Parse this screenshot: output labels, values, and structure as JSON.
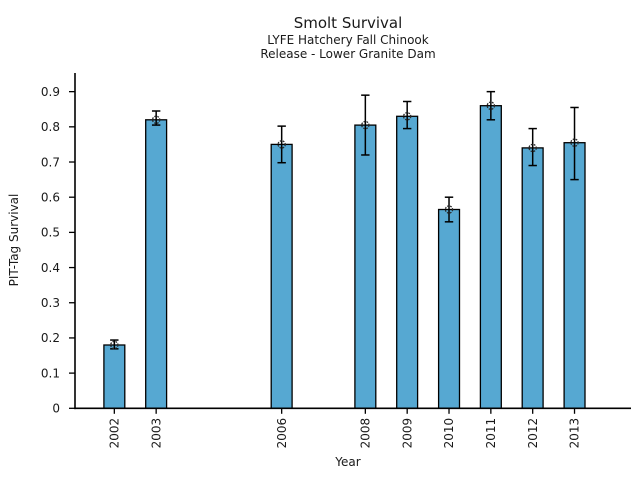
{
  "figure": {
    "background": "#ffffff",
    "text_color": "#1a1a1a"
  },
  "chart_data": {
    "type": "bar",
    "title": "Smolt Survival",
    "subtitle_lines": [
      "LYFE Hatchery Fall Chinook",
      "Release - Lower Granite Dam"
    ],
    "xlabel": "Year",
    "ylabel": "PIT-Tag Survival",
    "categories": [
      "2002",
      "2003",
      "2006",
      "2008",
      "2009",
      "2010",
      "2011",
      "2012",
      "2013"
    ],
    "values": [
      0.18,
      0.82,
      0.75,
      0.805,
      0.83,
      0.565,
      0.86,
      0.74,
      0.755
    ],
    "error_low": [
      0.169,
      0.805,
      0.698,
      0.72,
      0.795,
      0.53,
      0.82,
      0.69,
      0.65
    ],
    "error_high": [
      0.194,
      0.845,
      0.802,
      0.89,
      0.872,
      0.6,
      0.9,
      0.795,
      0.855
    ],
    "yticks": [
      "0",
      "0.1",
      "0.2",
      "0.3",
      "0.4",
      "0.5",
      "0.6",
      "0.7",
      "0.8",
      "0.9"
    ],
    "ylim": [
      0,
      0.953
    ],
    "xlim": [
      2001.06,
      2014.35
    ],
    "bar_width_years": 0.5,
    "bar_color": "#56a8d2",
    "bar_edge_color": "#000000",
    "errorbar_color": "#000000",
    "marker": "open-circle-dotted",
    "grid": false,
    "legend": null
  }
}
